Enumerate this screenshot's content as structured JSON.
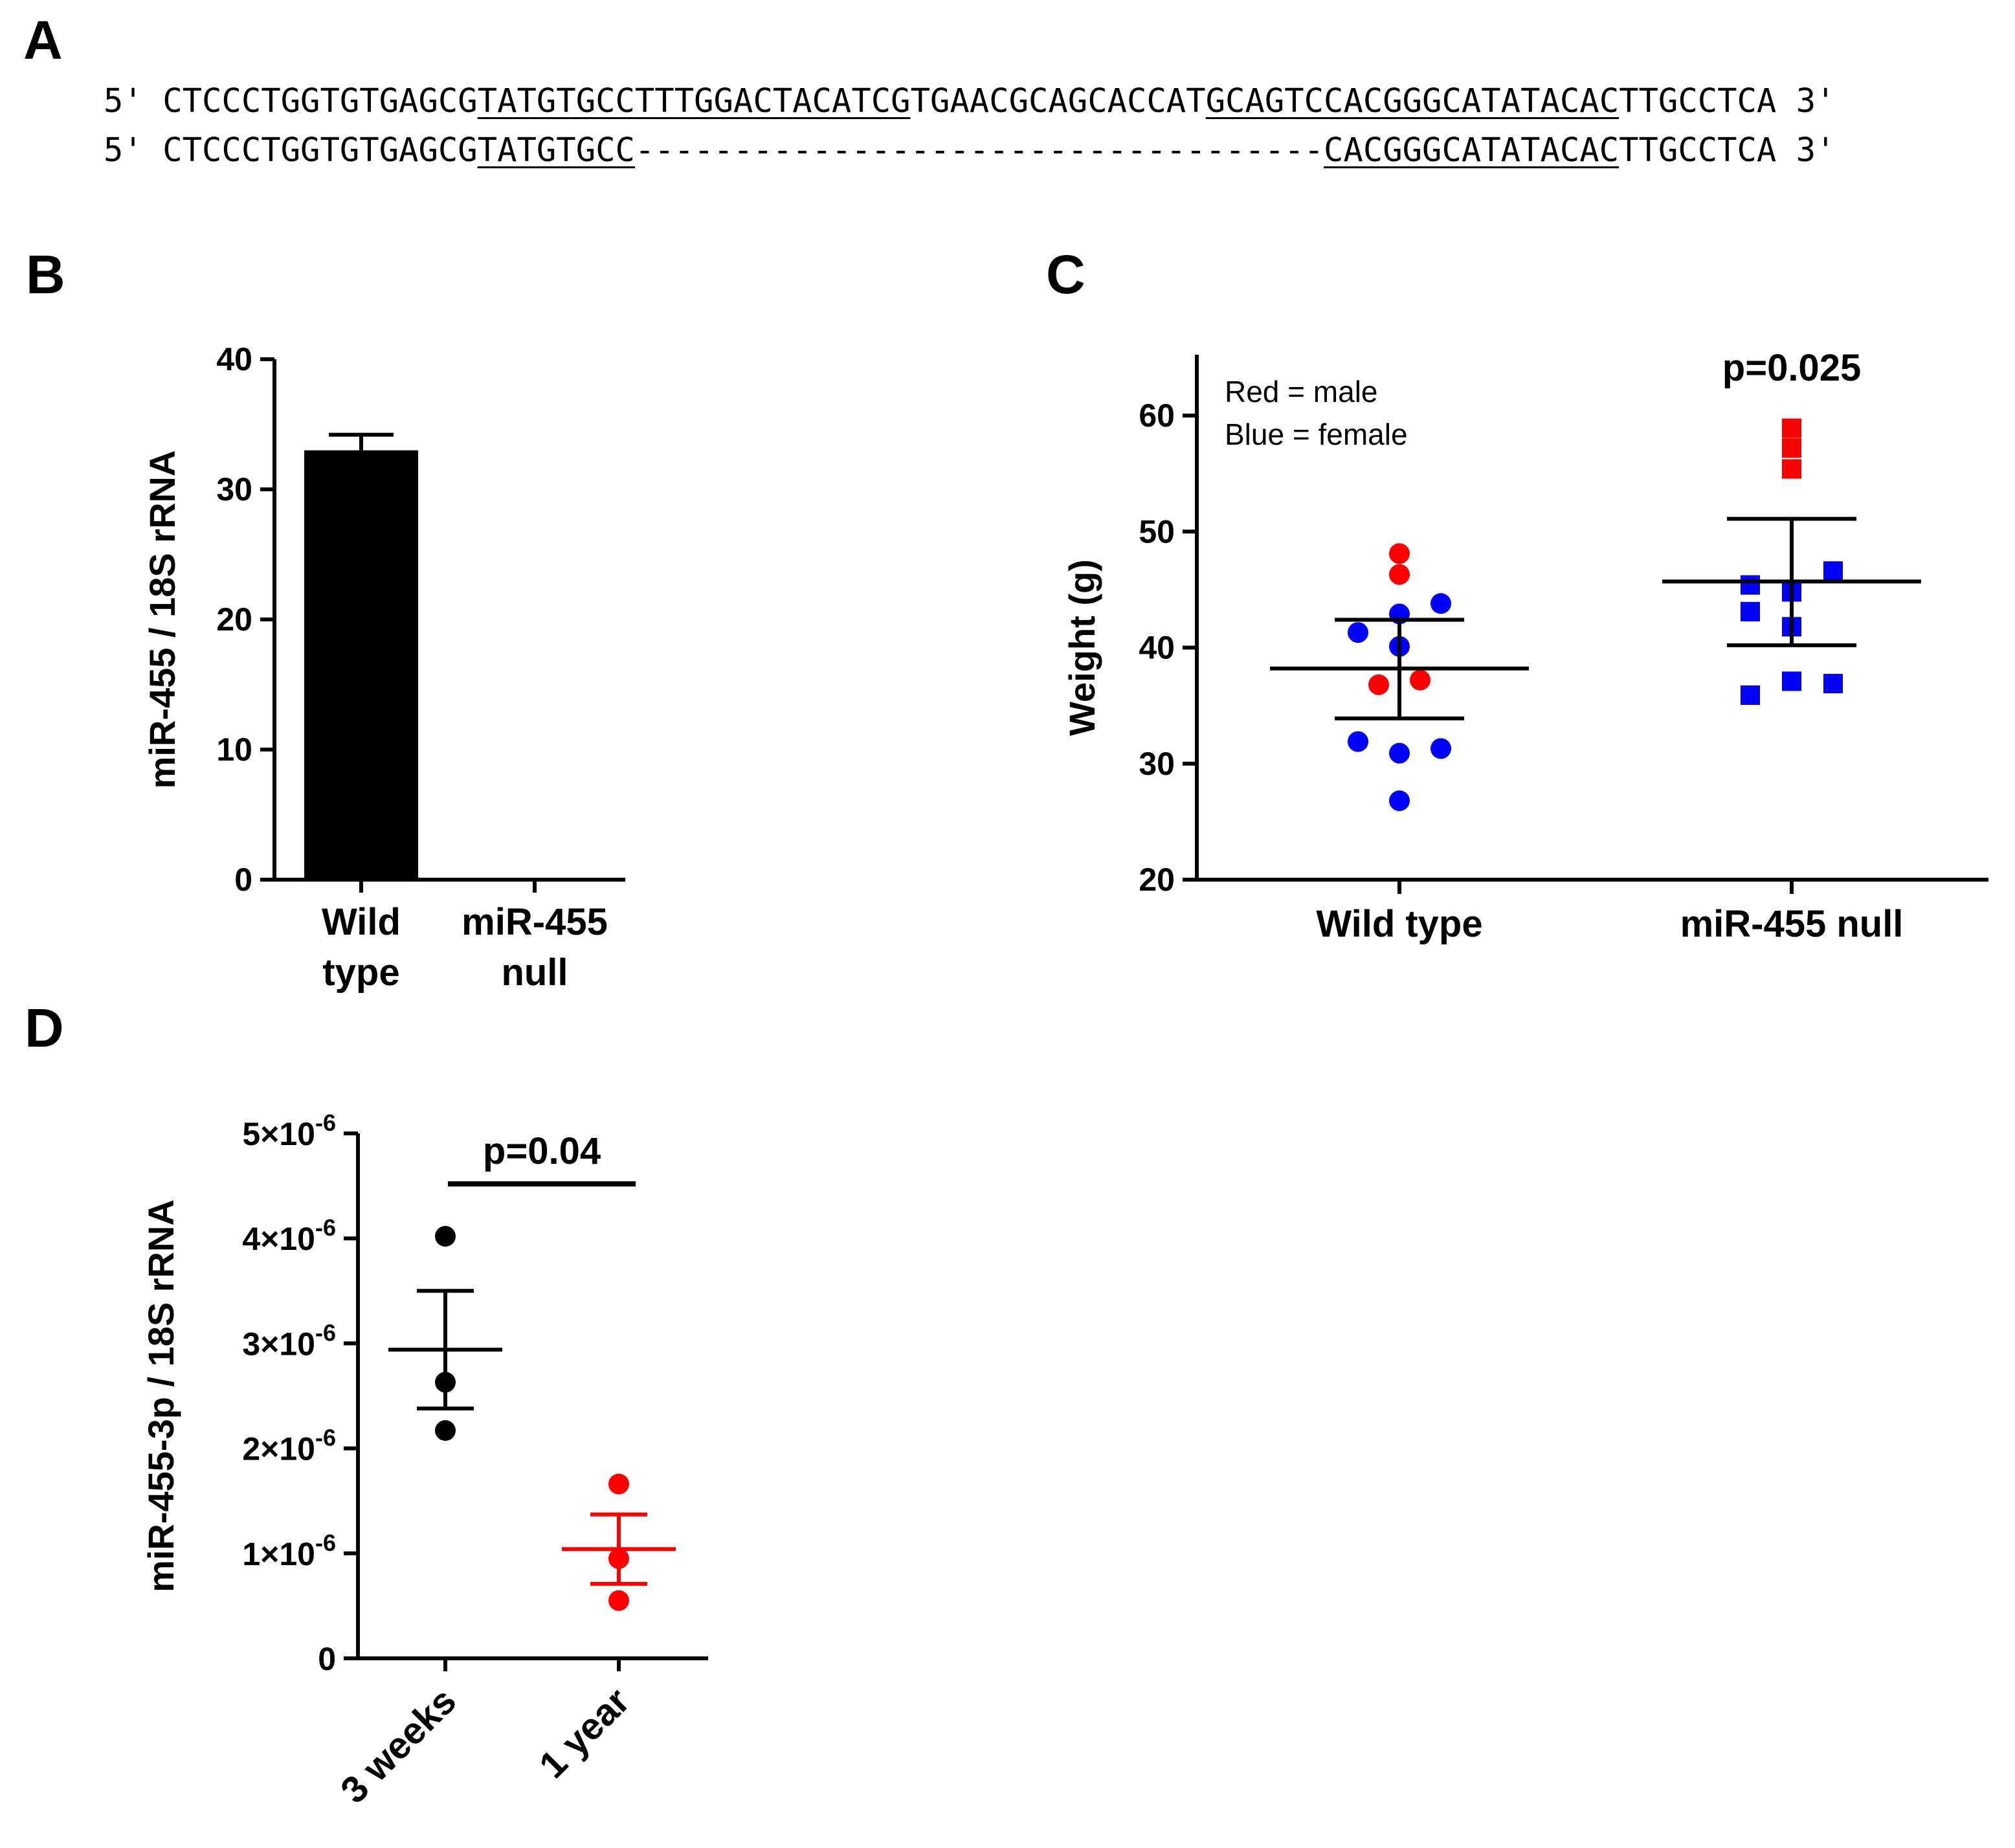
{
  "panels": {
    "A": {
      "letter": "A",
      "seq1": {
        "prefix": "5' CTCCCTGGTGTGAGCG",
        "u1": "TATGTGCCTTTGGACTACATCG",
        "mid": "TGAACGCAGCACCAT",
        "u2": "GCAGTCCACGGGCATATACAC",
        "suffix": "TTGCCTCA 3'"
      },
      "seq2": {
        "prefix": "5' CTCCCTGGTGTGAGCG",
        "u1": "TATGTGCC",
        "gap": "-----------------------------------",
        "u2": "CACGGGCATATACAC",
        "suffix": "TTGCCTCA 3'"
      }
    },
    "B": {
      "letter": "B"
    },
    "C": {
      "letter": "C",
      "note_line1": "Red = male",
      "note_line2": "Blue = female"
    },
    "D": {
      "letter": "D"
    }
  },
  "chart_data": [
    {
      "panel": "B",
      "type": "bar",
      "categories": [
        [
          "Wild",
          "type"
        ],
        [
          "miR-455",
          "null"
        ]
      ],
      "values": [
        33,
        0
      ],
      "errors": [
        1.2,
        0
      ],
      "ylabel": "miR-455 / 18S rRNA",
      "ylim": [
        0,
        40
      ],
      "yticks": [
        "0",
        "10",
        "20",
        "30",
        "40"
      ],
      "bar_color": "#000000"
    },
    {
      "panel": "C",
      "type": "scatter",
      "categories": [
        "Wild type",
        "miR-455 null"
      ],
      "ylabel": "Weight (g)",
      "ylim": [
        20,
        60
      ],
      "yticks": [
        "20",
        "30",
        "40",
        "50",
        "60"
      ],
      "pvalue": "p=0.025",
      "legend_text": [
        "Red = male",
        "Blue = female"
      ],
      "colors": {
        "male": "#ff0000",
        "female": "#0000ff"
      },
      "groups": [
        {
          "name": "Wild type",
          "marker": "circle",
          "mean": 38.2,
          "sem_low": 33.9,
          "sem_high": 42.4,
          "points": [
            {
              "dx": 0,
              "y": 48.1,
              "sex": "male"
            },
            {
              "dx": 0,
              "y": 46.3,
              "sex": "male"
            },
            {
              "dx": 1,
              "y": 43.8,
              "sex": "female"
            },
            {
              "dx": 0,
              "y": 42.9,
              "sex": "female"
            },
            {
              "dx": -1,
              "y": 41.3,
              "sex": "female"
            },
            {
              "dx": 0,
              "y": 40.1,
              "sex": "female"
            },
            {
              "dx": -0.5,
              "y": 36.8,
              "sex": "male"
            },
            {
              "dx": 0.5,
              "y": 37.2,
              "sex": "male"
            },
            {
              "dx": -1,
              "y": 31.9,
              "sex": "female"
            },
            {
              "dx": 1,
              "y": 31.3,
              "sex": "female"
            },
            {
              "dx": 0,
              "y": 30.9,
              "sex": "female"
            },
            {
              "dx": 0,
              "y": 26.8,
              "sex": "female"
            }
          ]
        },
        {
          "name": "miR-455 null",
          "marker": "square",
          "mean": 45.7,
          "sem_low": 40.2,
          "sem_high": 51.1,
          "points": [
            {
              "dx": 0,
              "y": 58.9,
              "sex": "male"
            },
            {
              "dx": 0,
              "y": 57.2,
              "sex": "male"
            },
            {
              "dx": 0,
              "y": 55.4,
              "sex": "male"
            },
            {
              "dx": 1,
              "y": 46.6,
              "sex": "female"
            },
            {
              "dx": -1,
              "y": 45.4,
              "sex": "female"
            },
            {
              "dx": 0,
              "y": 44.8,
              "sex": "female"
            },
            {
              "dx": -1,
              "y": 43.1,
              "sex": "female"
            },
            {
              "dx": 0,
              "y": 41.8,
              "sex": "female"
            },
            {
              "dx": 0,
              "y": 37.1,
              "sex": "female"
            },
            {
              "dx": 1,
              "y": 36.9,
              "sex": "female"
            },
            {
              "dx": -1,
              "y": 35.9,
              "sex": "female"
            }
          ]
        }
      ]
    },
    {
      "panel": "D",
      "type": "scatter",
      "categories": [
        "3 weeks",
        "1 year"
      ],
      "ylabel": "miR-455-3p / 18S rRNA",
      "ylim": [
        0,
        5e-06
      ],
      "yticks": [
        {
          "base": "0",
          "exp": ""
        },
        {
          "base": "1×10",
          "exp": "-6"
        },
        {
          "base": "2×10",
          "exp": "-6"
        },
        {
          "base": "3×10",
          "exp": "-6"
        },
        {
          "base": "4×10",
          "exp": "-6"
        },
        {
          "base": "5×10",
          "exp": "-6"
        }
      ],
      "pvalue": "p=0.04",
      "groups": [
        {
          "name": "3 weeks",
          "color": "#000000",
          "mean": 2.94e-06,
          "sem_low": 2.38e-06,
          "sem_high": 3.5e-06,
          "points": [
            4.02e-06,
            2.63e-06,
            2.17e-06
          ]
        },
        {
          "name": "1 year",
          "color": "#ff0000",
          "mean": 1.04e-06,
          "sem_low": 7.1e-07,
          "sem_high": 1.37e-06,
          "points": [
            1.66e-06,
            9.5e-07,
            5.5e-07
          ]
        }
      ]
    }
  ]
}
